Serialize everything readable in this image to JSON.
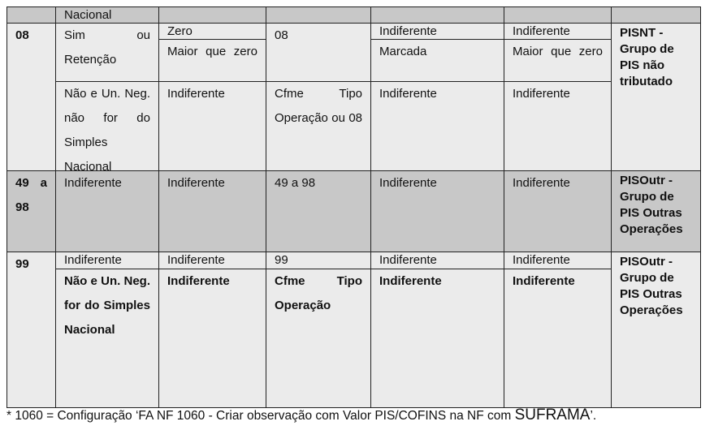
{
  "table": {
    "top_row": {
      "condition": "Nacional"
    },
    "row_08": {
      "cst": "08",
      "sub1": {
        "condition": "Sim ou Retenção",
        "value_zero": "Zero",
        "value_gt": "Maior que zero",
        "cst_out": "08",
        "opt_a": "Indiferente",
        "opt_b": "Marcada",
        "val_a": "Indiferente",
        "val_b": "Maior que zero"
      },
      "sub2": {
        "condition": "Não e Un. Neg. não for do Simples Nacional",
        "value": "Indiferente",
        "cst_out": "Cfme Tipo Operação ou 08",
        "opt": "Indiferente",
        "val": "Indiferente"
      },
      "group": "PISNT -Grupo de PIS não tributado"
    },
    "row_49": {
      "cst": "49 a 98",
      "condition": "Indiferente",
      "value": "Indiferente",
      "cst_out": "49 a 98",
      "opt": "Indiferente",
      "val": "Indiferente",
      "group": "PISOutr - Grupo de PIS Outras Operações"
    },
    "row_99": {
      "cst": "99",
      "sub1": {
        "condition": "Indiferente",
        "value": "Indiferente",
        "cst_out": "99",
        "opt": "Indiferente",
        "val": "Indiferente"
      },
      "sub2": {
        "condition": "Não e Un. Neg. for do Simples Nacional",
        "value": "Indiferente",
        "cst_out": "Cfme Tipo Operação",
        "opt": "Indiferente",
        "val": "Indiferente"
      },
      "group": "PISOutr - Grupo de PIS Outras Operações"
    }
  },
  "footnote": {
    "prefix": "* 1060 = Configuração ‘FA NF 1060 - Criar observação com Valor PIS/COFINS na NF com ",
    "emph": "SUFRAMA",
    "suffix": "’."
  }
}
